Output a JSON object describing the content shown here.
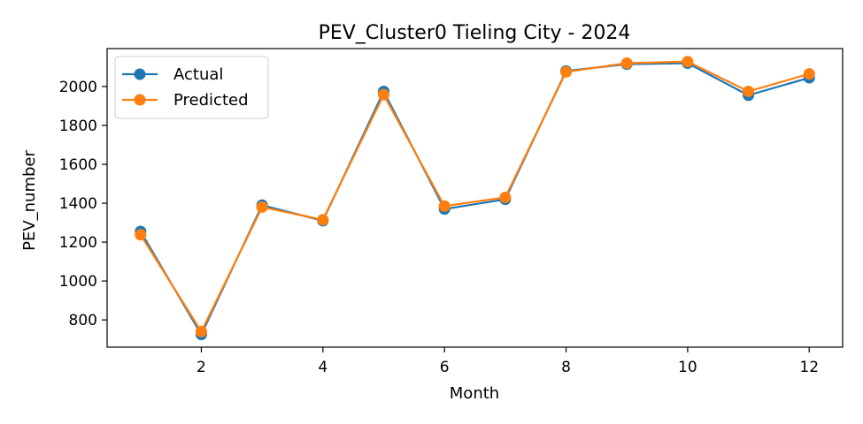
{
  "chart_data": {
    "type": "line",
    "title": "PEV_Cluster0 Tieling City - 2024",
    "xlabel": "Month",
    "ylabel": "PEV_number",
    "x": [
      1,
      2,
      3,
      4,
      5,
      6,
      7,
      8,
      9,
      10,
      11,
      12
    ],
    "xlim": [
      0.45,
      12.55
    ],
    "ylim": [
      660,
      2195
    ],
    "xticks": [
      2,
      4,
      6,
      8,
      10,
      12
    ],
    "yticks": [
      800,
      1000,
      1200,
      1400,
      1600,
      1800,
      2000
    ],
    "grid": false,
    "legend_position": "top-left",
    "series": [
      {
        "name": "Actual",
        "color": "#1f77b4",
        "values": [
          1255,
          725,
          1390,
          1310,
          1975,
          1370,
          1420,
          2080,
          2115,
          2120,
          1955,
          2045
        ]
      },
      {
        "name": "Predicted",
        "color": "#ff7f0e",
        "values": [
          1238,
          740,
          1380,
          1315,
          1958,
          1385,
          1430,
          2075,
          2120,
          2128,
          1975,
          2065
        ]
      }
    ]
  }
}
